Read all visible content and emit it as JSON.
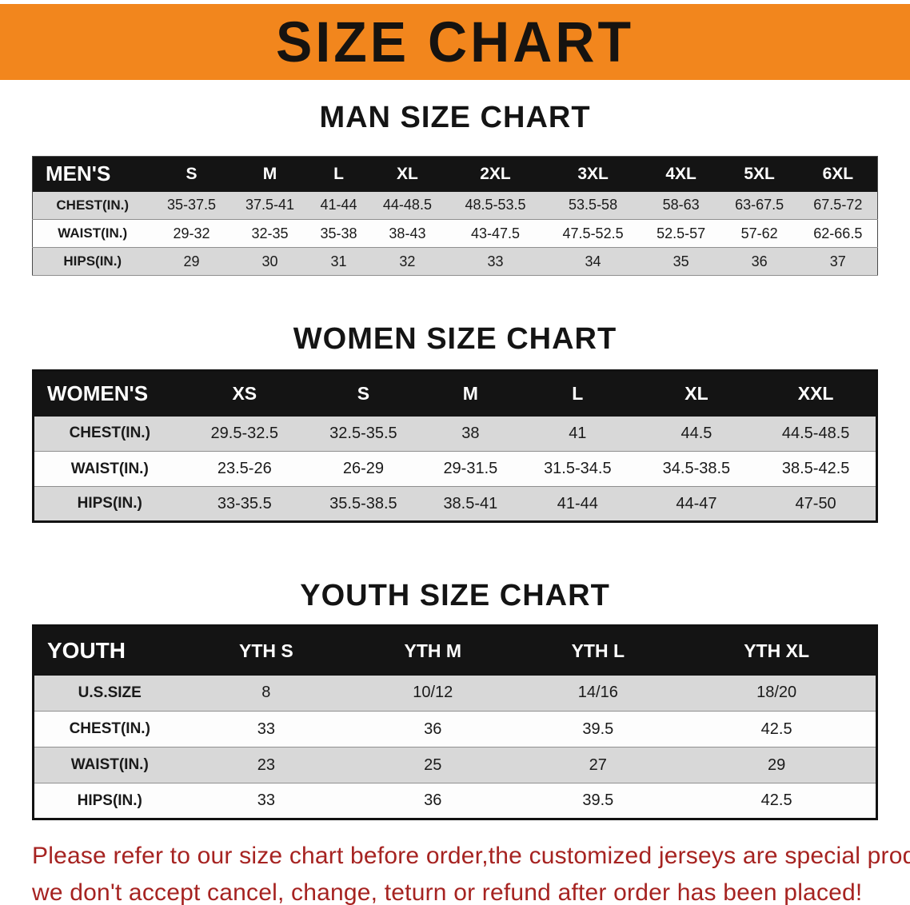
{
  "colors": {
    "banner": "#f2861d",
    "table_header": "#141414",
    "row_shade": "#d8d8d8",
    "row_plain": "#fdfdfd",
    "disclaimer_red": "#a62321",
    "text": "#141414"
  },
  "banner": {
    "title": "SIZE CHART"
  },
  "sections": [
    {
      "heading": "MAN SIZE CHART",
      "table": {
        "header": [
          "MEN'S",
          "S",
          "M",
          "L",
          "XL",
          "2XL",
          "3XL",
          "4XL",
          "5XL",
          "6XL"
        ],
        "rows": [
          [
            "CHEST(IN.)",
            "35-37.5",
            "37.5-41",
            "41-44",
            "44-48.5",
            "48.5-53.5",
            "53.5-58",
            "58-63",
            "63-67.5",
            "67.5-72"
          ],
          [
            "WAIST(IN.)",
            "29-32",
            "32-35",
            "35-38",
            "38-43",
            "43-47.5",
            "47.5-52.5",
            "52.5-57",
            "57-62",
            "62-66.5"
          ],
          [
            "HIPS(IN.)",
            "29",
            "30",
            "31",
            "32",
            "33",
            "34",
            "35",
            "36",
            "37"
          ]
        ]
      }
    },
    {
      "heading": "WOMEN SIZE CHART",
      "table": {
        "header": [
          "WOMEN'S",
          "XS",
          "S",
          "M",
          "L",
          "XL",
          "XXL"
        ],
        "rows": [
          [
            "CHEST(IN.)",
            "29.5-32.5",
            "32.5-35.5",
            "38",
            "41",
            "44.5",
            "44.5-48.5"
          ],
          [
            "WAIST(IN.)",
            "23.5-26",
            "26-29",
            "29-31.5",
            "31.5-34.5",
            "34.5-38.5",
            "38.5-42.5"
          ],
          [
            "HIPS(IN.)",
            "33-35.5",
            "35.5-38.5",
            "38.5-41",
            "41-44",
            "44-47",
            "47-50"
          ]
        ]
      }
    },
    {
      "heading": "YOUTH SIZE CHART",
      "table": {
        "header": [
          "YOUTH",
          "YTH S",
          "YTH M",
          "YTH L",
          "YTH XL"
        ],
        "rows": [
          [
            "U.S.SIZE",
            "8",
            "10/12",
            "14/16",
            "18/20"
          ],
          [
            "CHEST(IN.)",
            "33",
            "36",
            "39.5",
            "42.5"
          ],
          [
            "WAIST(IN.)",
            "23",
            "25",
            "27",
            "29"
          ],
          [
            "HIPS(IN.)",
            "33",
            "36",
            "39.5",
            "42.5"
          ]
        ]
      }
    }
  ],
  "disclaimer": {
    "line1": "Please refer to our size chart before order,the customized jerseys are special products,",
    "line2": "we don't accept cancel, change, teturn or refund after order has been placed!"
  }
}
